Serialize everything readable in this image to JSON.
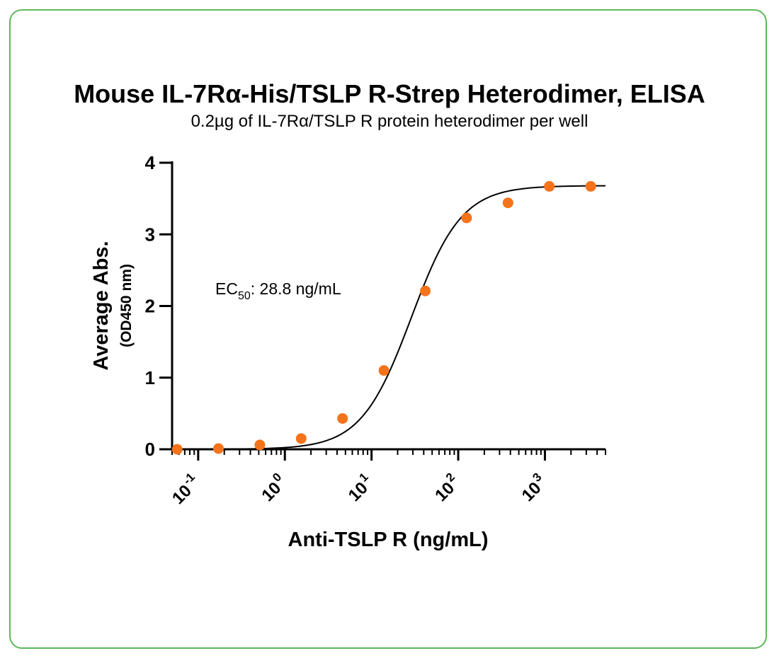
{
  "chart_data": {
    "type": "scatter",
    "title": "Mouse IL-7Rα-His/TSLP R-Strep Heterodimer, ELISA",
    "subtitle": "0.2µg of IL-7Rα/TSLP R protein heterodimer per well",
    "xlabel": "Anti-TSLP R (ng/mL)",
    "ylabel": "Average Abs.",
    "ylabel_sub": "(OD450 nm)",
    "x_scale": "log",
    "xlim": [
      0.05,
      5000
    ],
    "ylim": [
      0,
      4
    ],
    "x_ticks": [
      {
        "value": 0.1,
        "base": "10",
        "exp": "-1"
      },
      {
        "value": 1,
        "base": "10",
        "exp": "0"
      },
      {
        "value": 10,
        "base": "10",
        "exp": "1"
      },
      {
        "value": 100,
        "base": "10",
        "exp": "2"
      },
      {
        "value": 1000,
        "base": "10",
        "exp": "3"
      }
    ],
    "y_ticks": [
      0,
      1,
      2,
      3,
      4
    ],
    "annotation": {
      "prefix": "EC",
      "sub": "50",
      "suffix": ": 28.8 ng/mL"
    },
    "series": [
      {
        "x": [
          0.0572,
          0.1715,
          0.5144,
          1.543,
          4.63,
          13.89,
          41.67,
          125,
          375,
          1125,
          3375
        ],
        "y": [
          0.0,
          0.01,
          0.06,
          0.15,
          0.43,
          1.1,
          2.21,
          3.23,
          3.44,
          3.67,
          3.67
        ]
      }
    ],
    "fit": {
      "type": "4PL",
      "bottom": 0.0,
      "top": 3.68,
      "ec50": 28.8,
      "hill": 1.5
    },
    "colors": {
      "points": "#f5731a",
      "curve": "#000000",
      "axis": "#000000",
      "frame_border": "#5cb85c"
    }
  }
}
